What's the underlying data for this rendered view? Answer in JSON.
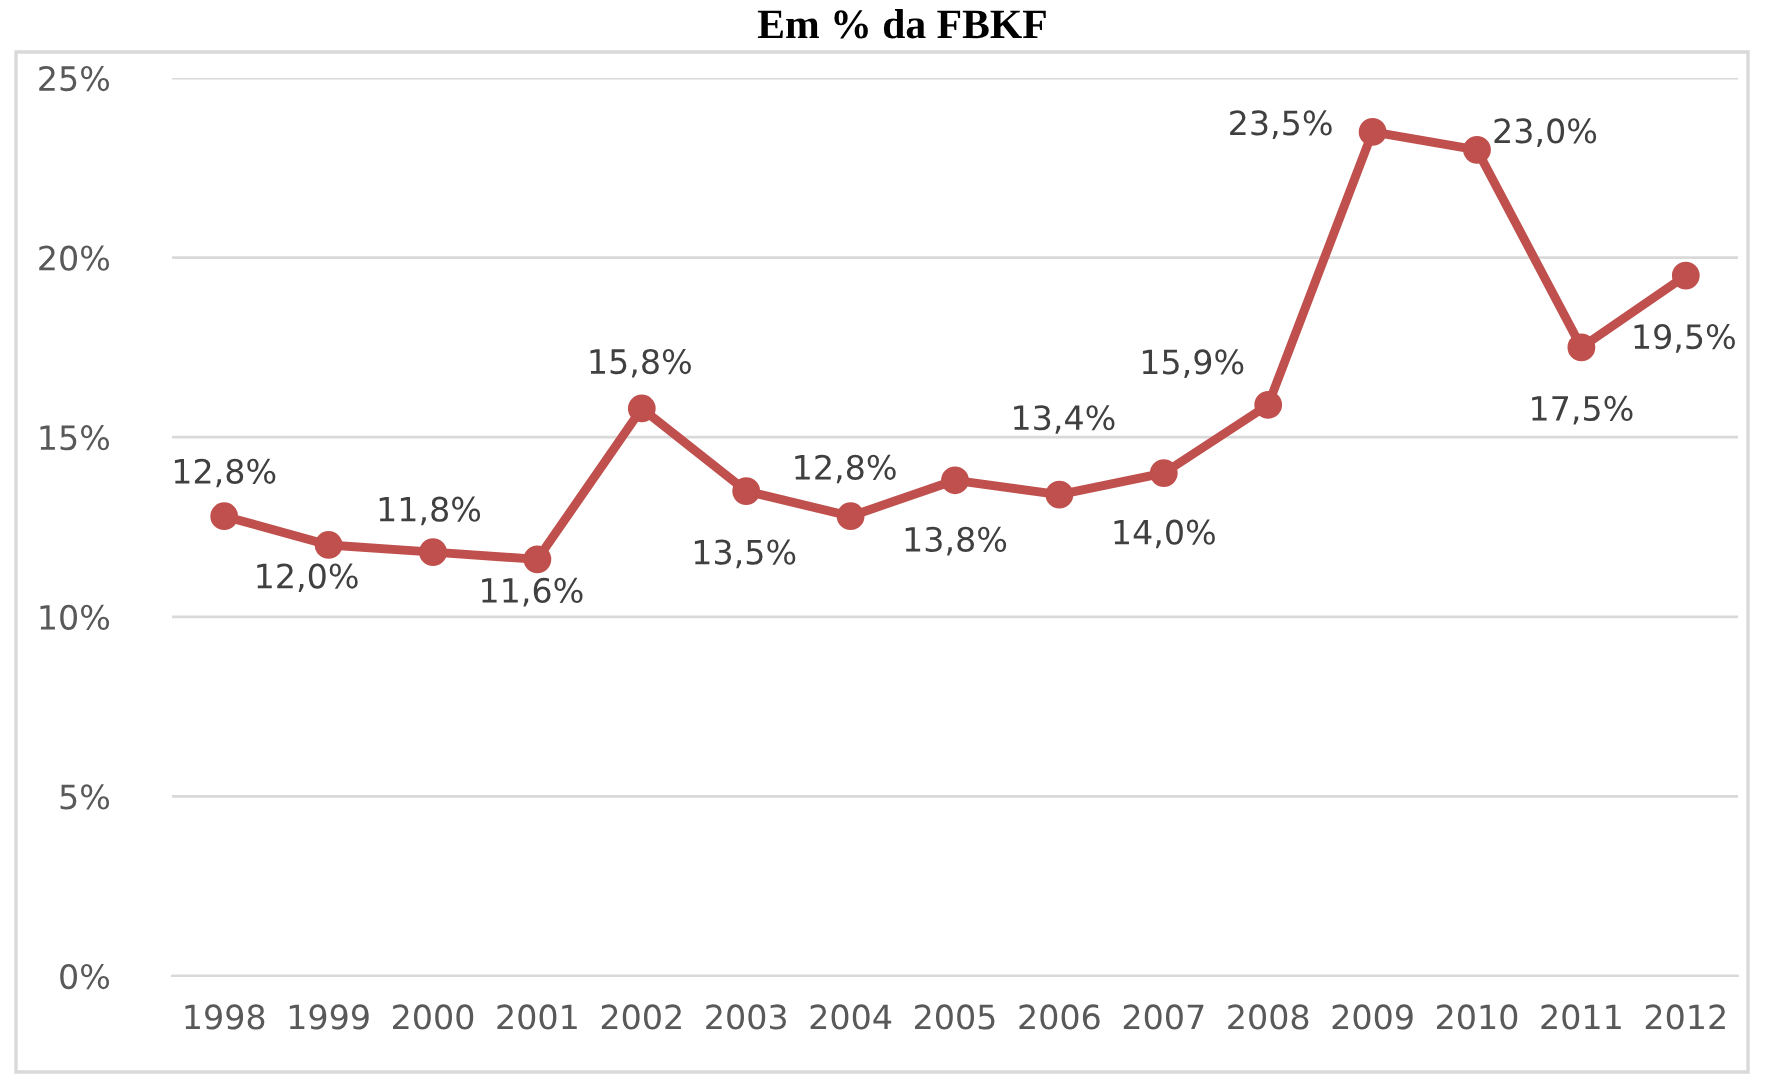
{
  "chart_data": {
    "type": "line",
    "title": "Em % da FBKF",
    "categories": [
      "1998",
      "1999",
      "2000",
      "2001",
      "2002",
      "2003",
      "2004",
      "2005",
      "2006",
      "2007",
      "2008",
      "2009",
      "2010",
      "2011",
      "2012"
    ],
    "series": [
      {
        "color": "#c0504d",
        "values": [
          12.8,
          12.0,
          11.8,
          11.6,
          15.8,
          13.5,
          12.8,
          13.8,
          13.4,
          14.0,
          15.9,
          23.5,
          23.0,
          17.5,
          19.5
        ],
        "value_labels": [
          "12,8%",
          "12,0%",
          "11,8%",
          "11,6%",
          "15,8%",
          "13,5%",
          "12,8%",
          "13,8%",
          "13,4%",
          "14,0%",
          "15,9%",
          "23,5%",
          "23,0%",
          "17,5%",
          "19,5%"
        ]
      }
    ],
    "ylim": [
      0,
      25
    ],
    "yticks": [
      {
        "value": 0,
        "label": "0%"
      },
      {
        "value": 5,
        "label": "5%"
      },
      {
        "value": 10,
        "label": "10%"
      },
      {
        "value": 15,
        "label": "15%"
      },
      {
        "value": 20,
        "label": "20%"
      },
      {
        "value": 25,
        "label": "25%"
      }
    ],
    "grid": "y",
    "marker": "circle",
    "line_style": "solid"
  }
}
